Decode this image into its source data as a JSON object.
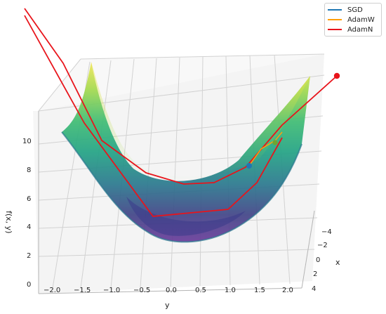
{
  "chart_data": {
    "type": "surface3d",
    "zlabel": "f(x, y)",
    "xlabel": "x",
    "ylabel": "y",
    "x_ticks": [
      "−4",
      "−2",
      "0",
      "2",
      "4"
    ],
    "y_ticks": [
      "−2.0",
      "−1.5",
      "−1.0",
      "−0.5",
      "0.0",
      "0.5",
      "1.0",
      "1.5",
      "2.0"
    ],
    "z_ticks": [
      "0",
      "2",
      "4",
      "6",
      "8",
      "10"
    ],
    "xlim": [
      -5,
      5
    ],
    "ylim": [
      -2,
      2
    ],
    "zlim": [
      0,
      11
    ],
    "grid": true,
    "legend_position": "top-right",
    "colormap": "viridis",
    "series": [
      {
        "name": "SGD",
        "color": "#1f77b4"
      },
      {
        "name": "AdamW",
        "color": "#ff9f0a"
      },
      {
        "name": "AdamN",
        "color": "#e8141b"
      }
    ]
  }
}
